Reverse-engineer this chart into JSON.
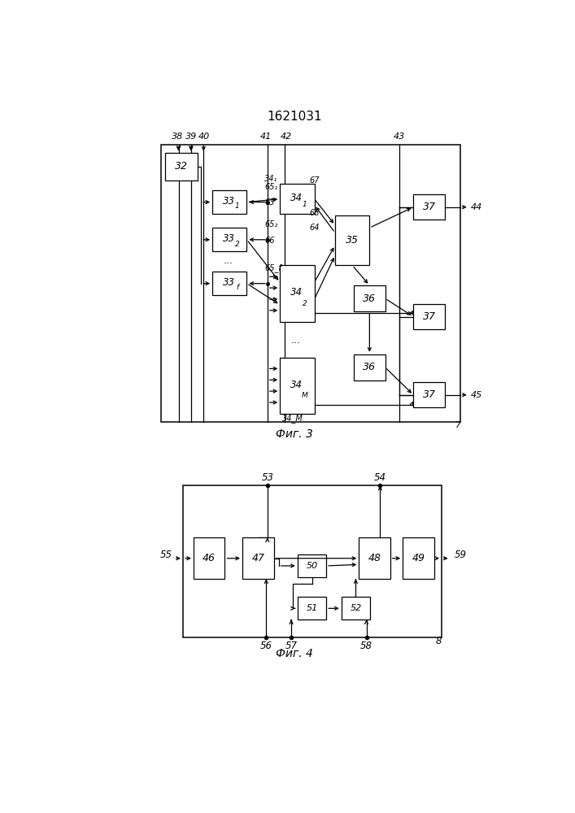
{
  "title": "1621031",
  "fig3_caption": "Фиг. 3",
  "fig4_caption": "Фиг. 4",
  "bg": "#ffffff"
}
